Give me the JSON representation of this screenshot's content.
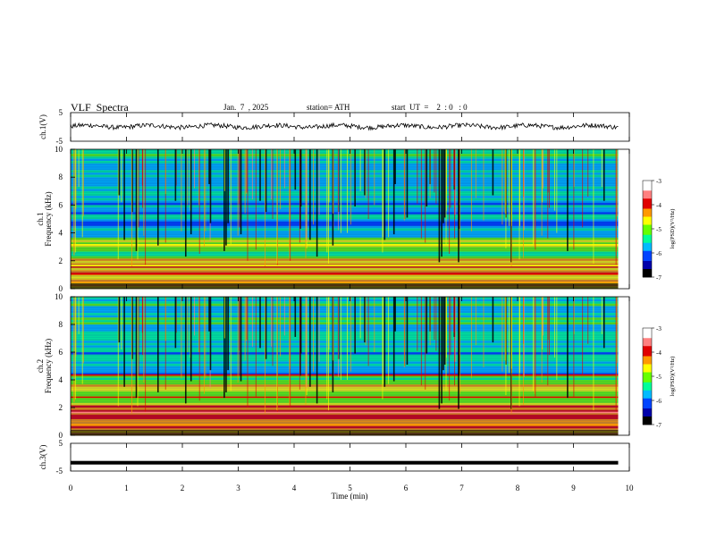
{
  "header": {
    "title": "VLF  Spectra",
    "date": "Jan.  7  , 2025",
    "station": "station= ATH",
    "start": "start  UT  =    2  : 0   : 0"
  },
  "chart_data": {
    "type": "heatmap",
    "xlabel": "Time  (min)",
    "xlim": [
      0,
      10
    ],
    "xticks": [
      "0",
      "1",
      "2",
      "3",
      "4",
      "5",
      "6",
      "7",
      "8",
      "9",
      "10"
    ],
    "data_end_min": 9.8,
    "panels": [
      {
        "id": "ch1-waveform",
        "type": "line",
        "ylabel": "ch.1(V)",
        "ylim": [
          -5,
          5
        ],
        "yticks": [
          "5",
          "-5"
        ],
        "baseline_v": 0.2
      },
      {
        "id": "ch1-spectrogram",
        "type": "heatmap",
        "ylabel_top": "ch.1",
        "ylabel": "Frequency  (kHz)",
        "ylim": [
          0,
          10
        ],
        "yticks": [
          "0",
          "2",
          "4",
          "6",
          "8",
          "10"
        ],
        "colorbar": {
          "label": "log(PSD)(V²/Hz)",
          "ticks": [
            "-3",
            "-4",
            "-5",
            "-6",
            "-7"
          ],
          "range": [
            -7,
            -3
          ]
        }
      },
      {
        "id": "ch2-spectrogram",
        "type": "heatmap",
        "ylabel_top": "ch.2",
        "ylabel": "Frequency  (kHz)",
        "ylim": [
          0,
          10
        ],
        "yticks": [
          "0",
          "2",
          "4",
          "6",
          "8",
          "10"
        ],
        "colorbar": {
          "label": "log(PSD)(V²/Hz)",
          "ticks": [
            "-3",
            "-4",
            "-5",
            "-6",
            "-7"
          ],
          "range": [
            -7,
            -3
          ]
        }
      },
      {
        "id": "ch3-waveform",
        "type": "line",
        "ylabel": "ch.3(V)",
        "ylim": [
          -5,
          5
        ],
        "yticks": [
          "5",
          "-5"
        ],
        "baseline_v": -2.0
      }
    ],
    "colormap": [
      "#ffffff",
      "#ff8080",
      "#e00000",
      "#ff9900",
      "#ffff00",
      "#66ff00",
      "#00ff99",
      "#00bbff",
      "#0044ff",
      "#0000aa",
      "#000000"
    ]
  }
}
